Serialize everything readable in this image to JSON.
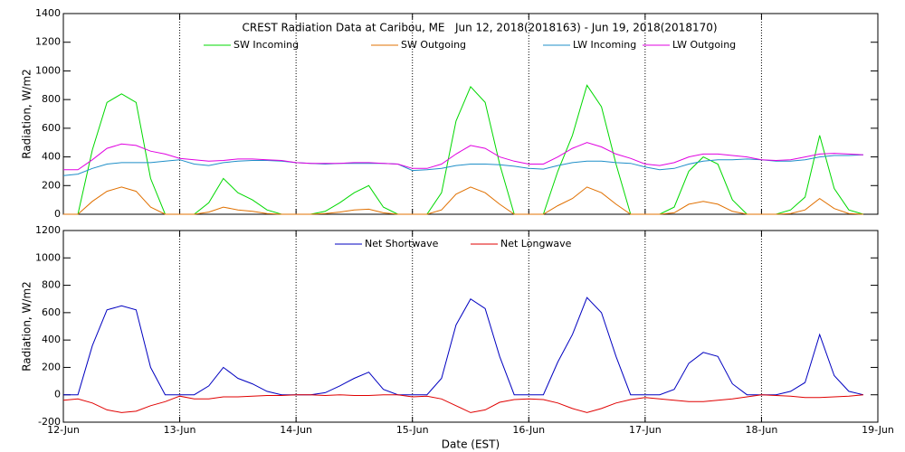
{
  "chart_data": [
    {
      "type": "line",
      "title": "CREST Radiation Data at Caribou, ME   Jun 12, 2018(2018163) - Jun 19, 2018(2018170)",
      "y_label": "Radiation, W/m2",
      "x": [
        0,
        0.125,
        0.25,
        0.375,
        0.5,
        0.625,
        0.75,
        0.875,
        1,
        1.125,
        1.25,
        1.375,
        1.5,
        1.625,
        1.75,
        1.875,
        2,
        2.125,
        2.25,
        2.375,
        2.5,
        2.625,
        2.75,
        2.875,
        3,
        3.125,
        3.25,
        3.375,
        3.5,
        3.625,
        3.75,
        3.875,
        4,
        4.125,
        4.25,
        4.375,
        4.5,
        4.625,
        4.75,
        4.875,
        5,
        5.125,
        5.25,
        5.375,
        5.5,
        5.625,
        5.75,
        5.875,
        6,
        6.125,
        6.25,
        6.375,
        6.5,
        6.625,
        6.75,
        6.875
      ],
      "xlim": [
        0,
        7
      ],
      "ylim": [
        0,
        1400
      ],
      "yticks": [
        0,
        200,
        400,
        600,
        800,
        1000,
        1200,
        1400
      ],
      "grid": true,
      "series": [
        {
          "name": "SW Incoming",
          "color": "#00d800",
          "values": [
            0,
            0,
            450,
            780,
            840,
            780,
            250,
            0,
            0,
            0,
            80,
            250,
            150,
            100,
            30,
            0,
            0,
            0,
            20,
            80,
            150,
            200,
            50,
            0,
            0,
            0,
            150,
            650,
            890,
            780,
            350,
            0,
            0,
            0,
            300,
            550,
            900,
            750,
            350,
            0,
            0,
            0,
            50,
            300,
            400,
            350,
            100,
            0,
            0,
            0,
            30,
            120,
            550,
            180,
            30,
            0
          ]
        },
        {
          "name": "SW Outgoing",
          "color": "#e07000",
          "values": [
            0,
            0,
            90,
            160,
            190,
            160,
            50,
            0,
            0,
            0,
            15,
            50,
            30,
            20,
            5,
            0,
            0,
            0,
            5,
            15,
            30,
            35,
            10,
            0,
            0,
            0,
            30,
            140,
            190,
            150,
            70,
            0,
            0,
            0,
            60,
            110,
            190,
            150,
            70,
            0,
            0,
            0,
            10,
            70,
            90,
            70,
            20,
            0,
            0,
            0,
            5,
            30,
            110,
            40,
            5,
            0
          ]
        },
        {
          "name": "LW Incoming",
          "color": "#1f8fc8",
          "values": [
            270,
            280,
            320,
            350,
            360,
            360,
            360,
            370,
            380,
            350,
            340,
            360,
            370,
            375,
            375,
            370,
            360,
            355,
            350,
            355,
            355,
            355,
            355,
            350,
            305,
            310,
            320,
            340,
            350,
            350,
            345,
            335,
            320,
            315,
            340,
            360,
            370,
            370,
            360,
            355,
            330,
            310,
            320,
            350,
            370,
            380,
            380,
            385,
            380,
            370,
            370,
            380,
            400,
            410,
            410,
            415
          ]
        },
        {
          "name": "LW Outgoing",
          "color": "#e000e0",
          "values": [
            310,
            310,
            380,
            460,
            490,
            480,
            440,
            420,
            390,
            380,
            370,
            375,
            385,
            385,
            380,
            375,
            360,
            355,
            355,
            355,
            360,
            360,
            355,
            350,
            320,
            320,
            350,
            420,
            480,
            460,
            400,
            370,
            350,
            350,
            400,
            460,
            500,
            470,
            420,
            390,
            350,
            340,
            360,
            400,
            420,
            420,
            410,
            400,
            380,
            375,
            380,
            400,
            420,
            425,
            420,
            415
          ]
        }
      ]
    },
    {
      "type": "line",
      "x_label": "Date (EST)",
      "y_label": "Radiation, W/m2",
      "x": [
        0,
        0.125,
        0.25,
        0.375,
        0.5,
        0.625,
        0.75,
        0.875,
        1,
        1.125,
        1.25,
        1.375,
        1.5,
        1.625,
        1.75,
        1.875,
        2,
        2.125,
        2.25,
        2.375,
        2.5,
        2.625,
        2.75,
        2.875,
        3,
        3.125,
        3.25,
        3.375,
        3.5,
        3.625,
        3.75,
        3.875,
        4,
        4.125,
        4.25,
        4.375,
        4.5,
        4.625,
        4.75,
        4.875,
        5,
        5.125,
        5.25,
        5.375,
        5.5,
        5.625,
        5.75,
        5.875,
        6,
        6.125,
        6.25,
        6.375,
        6.5,
        6.625,
        6.75,
        6.875
      ],
      "xlim": [
        0,
        7
      ],
      "xticks": [
        {
          "value": 0,
          "label": "12-Jun"
        },
        {
          "value": 1,
          "label": "13-Jun"
        },
        {
          "value": 2,
          "label": "14-Jun"
        },
        {
          "value": 3,
          "label": "15-Jun"
        },
        {
          "value": 4,
          "label": "16-Jun"
        },
        {
          "value": 5,
          "label": "17-Jun"
        },
        {
          "value": 6,
          "label": "18-Jun"
        },
        {
          "value": 7,
          "label": "19-Jun"
        }
      ],
      "ylim": [
        -200,
        1200
      ],
      "yticks": [
        -200,
        0,
        200,
        400,
        600,
        800,
        1000,
        1200
      ],
      "grid": true,
      "series": [
        {
          "name": "Net Shortwave",
          "color": "#0000c0",
          "values": [
            0,
            0,
            360,
            620,
            650,
            620,
            200,
            0,
            0,
            0,
            65,
            200,
            120,
            80,
            25,
            0,
            0,
            0,
            15,
            65,
            120,
            165,
            40,
            0,
            0,
            0,
            120,
            510,
            700,
            630,
            280,
            0,
            0,
            0,
            240,
            440,
            710,
            600,
            280,
            0,
            0,
            0,
            40,
            230,
            310,
            280,
            80,
            0,
            0,
            0,
            25,
            90,
            440,
            140,
            25,
            0
          ]
        },
        {
          "name": "Net Longwave",
          "color": "#e00000",
          "values": [
            -40,
            -30,
            -60,
            -110,
            -130,
            -120,
            -80,
            -50,
            -10,
            -30,
            -30,
            -15,
            -15,
            -10,
            -5,
            -5,
            0,
            0,
            -5,
            0,
            -5,
            -5,
            0,
            0,
            -15,
            -10,
            -30,
            -80,
            -130,
            -110,
            -55,
            -35,
            -30,
            -35,
            -60,
            -100,
            -130,
            -100,
            -60,
            -35,
            -20,
            -30,
            -40,
            -50,
            -50,
            -40,
            -30,
            -15,
            0,
            -5,
            -10,
            -20,
            -20,
            -15,
            -10,
            0
          ]
        }
      ]
    }
  ]
}
